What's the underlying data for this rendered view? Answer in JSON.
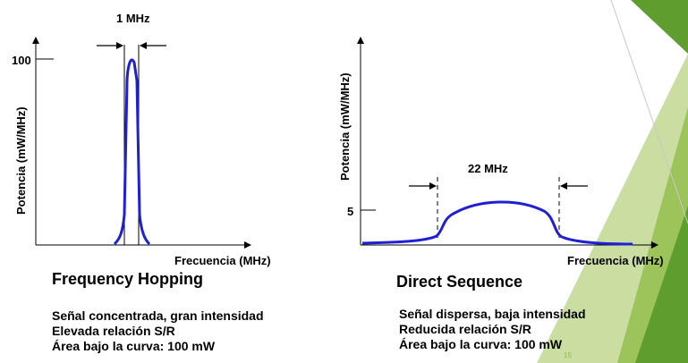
{
  "theme": {
    "accent_light": "#c9dea0",
    "accent_mid": "#9cc45a",
    "accent_dark": "#5e9e2f",
    "curve_color": "#1f1fd6"
  },
  "fh": {
    "bandwidth_label": "1 MHz",
    "ylabel": "Potencia (mW/MHz)",
    "xlabel": "Frecuencia (MHz)",
    "y_tick": "100",
    "title": "Frequency Hopping",
    "desc": [
      "Señal concentrada, gran intensidad",
      "Elevada relación S/R",
      "Área bajo la curva: 100 mW"
    ]
  },
  "ds": {
    "bandwidth_label": "22 MHz",
    "ylabel": "Potencia (mW/MHz)",
    "xlabel": "Frecuencia (MHz)",
    "y_tick": "5",
    "title": "Direct Sequence",
    "desc": [
      "Señal dispersa, baja intensidad",
      "Reducida relación S/R",
      "Área bajo la curva: 100 mW"
    ]
  },
  "slide_number": "15"
}
